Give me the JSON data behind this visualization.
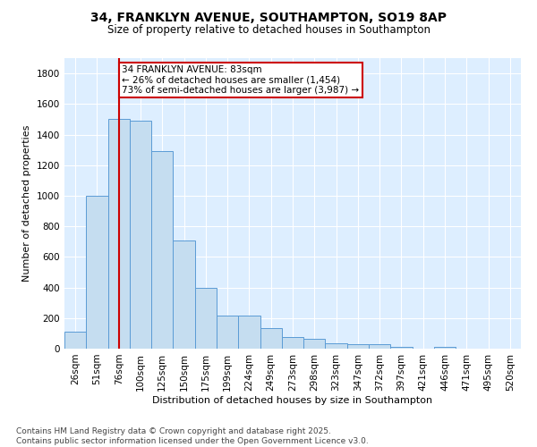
{
  "title1": "34, FRANKLYN AVENUE, SOUTHAMPTON, SO19 8AP",
  "title2": "Size of property relative to detached houses in Southampton",
  "xlabel": "Distribution of detached houses by size in Southampton",
  "ylabel": "Number of detached properties",
  "categories": [
    "26sqm",
    "51sqm",
    "76sqm",
    "100sqm",
    "125sqm",
    "150sqm",
    "175sqm",
    "199sqm",
    "224sqm",
    "249sqm",
    "273sqm",
    "298sqm",
    "323sqm",
    "347sqm",
    "372sqm",
    "397sqm",
    "421sqm",
    "446sqm",
    "471sqm",
    "495sqm",
    "520sqm"
  ],
  "values": [
    110,
    1000,
    1500,
    1490,
    1290,
    710,
    400,
    215,
    215,
    135,
    75,
    65,
    38,
    28,
    28,
    14,
    0,
    14,
    0,
    0,
    0
  ],
  "bar_color": "#c5ddf0",
  "bar_edge_color": "#5b9bd5",
  "redline_index": 2,
  "redline_color": "#cc0000",
  "annotation_text": "34 FRANKLYN AVENUE: 83sqm\n← 26% of detached houses are smaller (1,454)\n73% of semi-detached houses are larger (3,987) →",
  "annotation_box_color": "#ffffff",
  "annotation_box_edge": "#cc0000",
  "ylim": [
    0,
    1900
  ],
  "yticks": [
    0,
    200,
    400,
    600,
    800,
    1000,
    1200,
    1400,
    1600,
    1800
  ],
  "background_color": "#ddeeff",
  "footer": "Contains HM Land Registry data © Crown copyright and database right 2025.\nContains public sector information licensed under the Open Government Licence v3.0.",
  "title1_fontsize": 10,
  "title2_fontsize": 8.5,
  "xlabel_fontsize": 8,
  "ylabel_fontsize": 8,
  "tick_fontsize": 7.5,
  "annotation_fontsize": 7.5,
  "footer_fontsize": 6.5
}
